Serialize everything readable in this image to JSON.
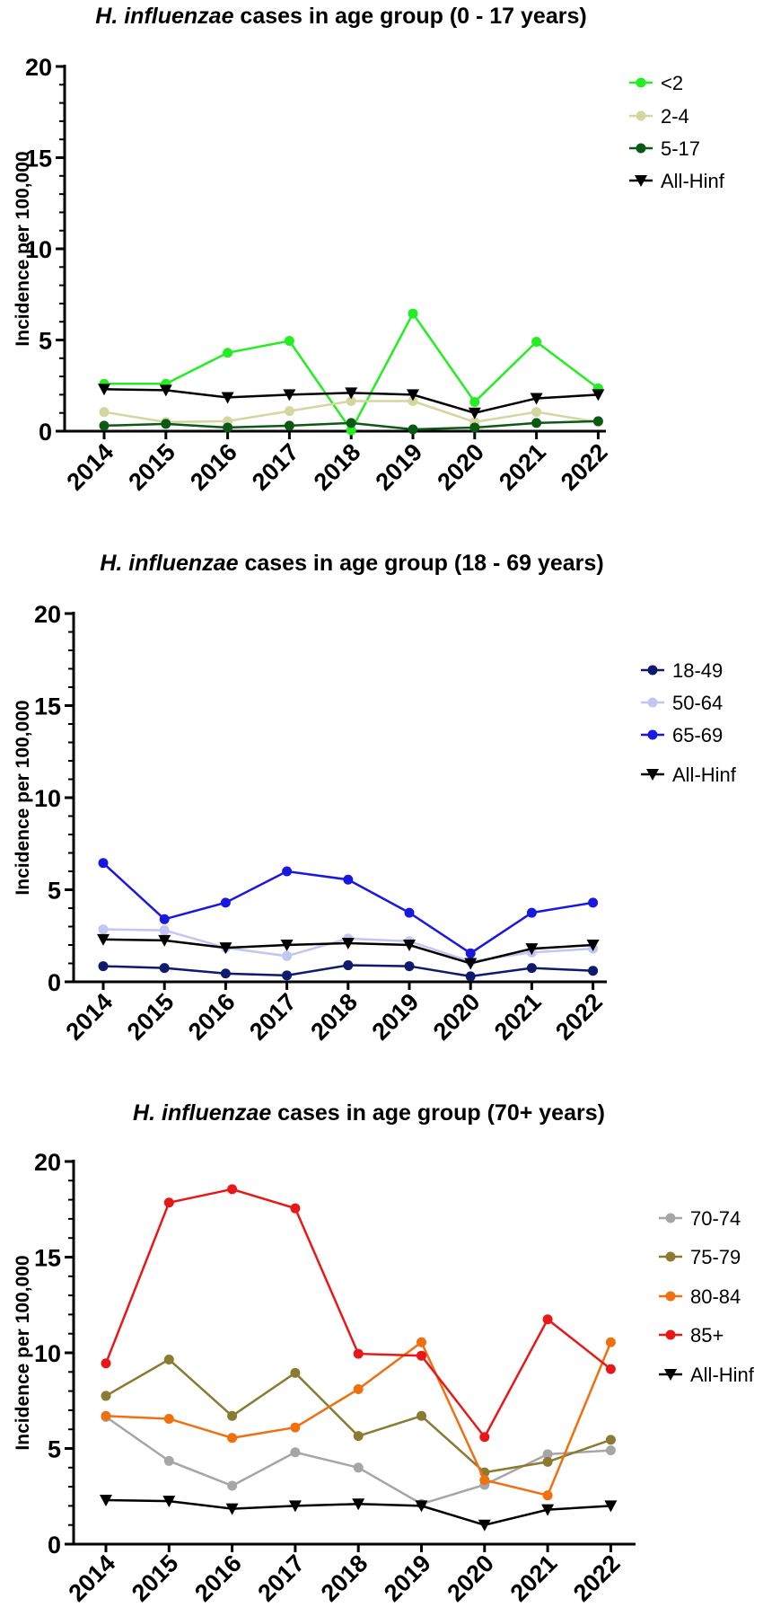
{
  "chart_data": [
    {
      "type": "line",
      "title_italic": "H. influenzae",
      "title_rest": " cases in age group (0 - 17 years)",
      "xlabel": "",
      "ylabel": "Incidence per 100,000",
      "ylim": [
        0,
        20
      ],
      "yticks": [
        "0",
        "5",
        "10",
        "15",
        "20"
      ],
      "categories": [
        "2014",
        "2015",
        "2016",
        "2017",
        "2018",
        "2019",
        "2020",
        "2021",
        "2022"
      ],
      "series": [
        {
          "name": "<2",
          "color": "#22ee22",
          "marker": "circle",
          "values": [
            2.6,
            2.6,
            4.3,
            4.95,
            0.05,
            6.45,
            1.6,
            4.9,
            2.35
          ]
        },
        {
          "name": "2-4",
          "color": "#d4d6a0",
          "marker": "circle",
          "values": [
            1.05,
            0.5,
            0.55,
            1.1,
            1.65,
            1.65,
            0.5,
            1.05,
            0.5
          ]
        },
        {
          "name": "5-17",
          "color": "#0b5a14",
          "marker": "circle",
          "values": [
            0.3,
            0.4,
            0.2,
            0.3,
            0.45,
            0.1,
            0.2,
            0.45,
            0.55
          ]
        },
        {
          "name": "All-Hinf",
          "color": "#000000",
          "marker": "triangle",
          "values": [
            2.3,
            2.25,
            1.85,
            2.0,
            2.1,
            2.0,
            1.0,
            1.8,
            2.0
          ]
        }
      ]
    },
    {
      "type": "line",
      "title_italic": "H. influenzae",
      "title_rest": " cases in age group (18 - 69 years)",
      "xlabel": "",
      "ylabel": "Incidence per 100,000",
      "ylim": [
        0,
        20
      ],
      "yticks": [
        "0",
        "5",
        "10",
        "15",
        "20"
      ],
      "categories": [
        "2014",
        "2015",
        "2016",
        "2017",
        "2018",
        "2019",
        "2020",
        "2021",
        "2022"
      ],
      "series": [
        {
          "name": "18-49",
          "color": "#0d1a6e",
          "marker": "circle",
          "values": [
            0.85,
            0.75,
            0.45,
            0.35,
            0.9,
            0.85,
            0.3,
            0.75,
            0.6
          ]
        },
        {
          "name": "50-64",
          "color": "#c3c5f2",
          "marker": "circle",
          "values": [
            2.85,
            2.8,
            1.85,
            1.4,
            2.35,
            2.2,
            1.1,
            1.6,
            1.8
          ]
        },
        {
          "name": "65-69",
          "color": "#1818e0",
          "marker": "circle",
          "values": [
            6.45,
            3.4,
            4.3,
            6.0,
            5.55,
            3.75,
            1.55,
            3.75,
            4.3
          ]
        },
        {
          "name": "All-Hinf",
          "color": "#000000",
          "marker": "triangle",
          "values": [
            2.3,
            2.25,
            1.85,
            2.0,
            2.1,
            2.0,
            1.0,
            1.8,
            2.0
          ]
        }
      ]
    },
    {
      "type": "line",
      "title_italic": "H. influenzae",
      "title_rest": " cases in age group (70+ years)",
      "xlabel": "",
      "ylabel": "Incidence per 100,000",
      "ylim": [
        0,
        20
      ],
      "yticks": [
        "0",
        "5",
        "10",
        "15",
        "20"
      ],
      "categories": [
        "2014",
        "2015",
        "2016",
        "2017",
        "2018",
        "2019",
        "2020",
        "2021",
        "2022"
      ],
      "series": [
        {
          "name": "70-74",
          "color": "#a6a6a6",
          "marker": "circle",
          "values": [
            6.65,
            4.35,
            3.05,
            4.8,
            4.0,
            2.1,
            3.1,
            4.7,
            4.9
          ]
        },
        {
          "name": "75-79",
          "color": "#8a7a32",
          "marker": "circle",
          "values": [
            7.75,
            9.65,
            6.7,
            8.95,
            5.65,
            6.7,
            3.75,
            4.3,
            5.45
          ]
        },
        {
          "name": "80-84",
          "color": "#f07010",
          "marker": "circle",
          "values": [
            6.7,
            6.55,
            5.55,
            6.1,
            8.1,
            10.55,
            3.35,
            2.55,
            10.55
          ]
        },
        {
          "name": "85+",
          "color": "#e81818",
          "marker": "circle",
          "values": [
            9.45,
            17.85,
            18.55,
            17.55,
            9.95,
            9.85,
            5.6,
            11.75,
            9.15
          ]
        },
        {
          "name": "All-Hinf",
          "color": "#000000",
          "marker": "triangle",
          "values": [
            2.3,
            2.25,
            1.85,
            2.0,
            2.1,
            2.0,
            1.0,
            1.8,
            2.0
          ]
        }
      ]
    }
  ]
}
